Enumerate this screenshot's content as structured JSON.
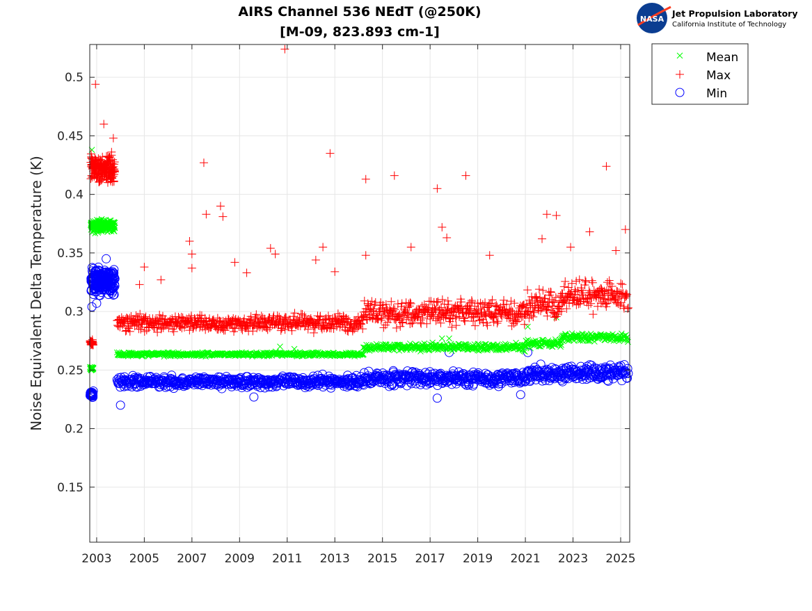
{
  "chart_data": {
    "type": "scatter",
    "title": "AIRS Channel 536 NEdT (@250K)",
    "subtitle": "[M-09, 823.893 cm-1]",
    "xlabel": "",
    "ylabel": "Noise Equivalent Delta Temperature (K)",
    "xlim": [
      2002.71,
      2025.38
    ],
    "ylim": [
      0.103,
      0.528
    ],
    "xticks": [
      2003,
      2005,
      2007,
      2009,
      2011,
      2013,
      2015,
      2017,
      2019,
      2021,
      2023,
      2025
    ],
    "xtick_labels": [
      "2003",
      "2005",
      "2007",
      "2009",
      "2011",
      "2013",
      "2015",
      "2017",
      "2019",
      "2021",
      "2023",
      "2025"
    ],
    "yticks": [
      0.15,
      0.2,
      0.25,
      0.3,
      0.35,
      0.4,
      0.45,
      0.5
    ],
    "ytick_labels": [
      "0.15",
      "0.2",
      "0.25",
      "0.3",
      "0.35",
      "0.4",
      "0.45",
      "0.5"
    ],
    "grid": true,
    "legend_position": "outside-top-right",
    "series": [
      {
        "name": "Mean",
        "marker": "x",
        "color": "#00ff00",
        "clusters": [
          {
            "x": [
              2002.72,
              2002.85
            ],
            "y": [
              0.249,
              0.253
            ]
          },
          {
            "x": [
              2002.75,
              2003.75
            ],
            "y": [
              0.365,
              0.381
            ]
          },
          {
            "x": [
              2003.85,
              2014.2
            ],
            "y": [
              0.261,
              0.266
            ]
          },
          {
            "x": [
              2014.2,
              2021.0
            ],
            "y": [
              0.265,
              0.274
            ]
          },
          {
            "x": [
              2021.0,
              2022.5
            ],
            "y": [
              0.268,
              0.277
            ]
          },
          {
            "x": [
              2022.5,
              2025.3
            ],
            "y": [
              0.273,
              0.283
            ]
          }
        ],
        "points": [
          [
            2002.8,
            0.438
          ],
          [
            2010.7,
            0.27
          ],
          [
            2017.5,
            0.277
          ],
          [
            2017.8,
            0.277
          ],
          [
            2021.1,
            0.287
          ],
          [
            2022.3,
            0.295
          ],
          [
            2011.3,
            0.268
          ]
        ]
      },
      {
        "name": "Max",
        "marker": "+",
        "color": "#ff0000",
        "clusters": [
          {
            "x": [
              2002.72,
              2002.85
            ],
            "y": [
              0.27,
              0.277
            ]
          },
          {
            "x": [
              2002.75,
              2003.75
            ],
            "y": [
              0.405,
              0.44
            ]
          },
          {
            "x": [
              2003.85,
              2014.2
            ],
            "y": [
              0.28,
              0.3
            ]
          },
          {
            "x": [
              2014.2,
              2021.0
            ],
            "y": [
              0.284,
              0.314
            ]
          },
          {
            "x": [
              2021.0,
              2022.5
            ],
            "y": [
              0.288,
              0.322
            ]
          },
          {
            "x": [
              2022.5,
              2025.3
            ],
            "y": [
              0.296,
              0.33
            ]
          }
        ],
        "points": [
          [
            2002.95,
            0.494
          ],
          [
            2003.3,
            0.46
          ],
          [
            2003.7,
            0.448
          ],
          [
            2004.8,
            0.323
          ],
          [
            2005.0,
            0.338
          ],
          [
            2005.7,
            0.327
          ],
          [
            2006.9,
            0.36
          ],
          [
            2007.0,
            0.349
          ],
          [
            2007.0,
            0.337
          ],
          [
            2007.5,
            0.427
          ],
          [
            2007.6,
            0.383
          ],
          [
            2008.2,
            0.39
          ],
          [
            2008.3,
            0.381
          ],
          [
            2008.8,
            0.342
          ],
          [
            2009.3,
            0.333
          ],
          [
            2010.3,
            0.354
          ],
          [
            2010.5,
            0.349
          ],
          [
            2010.9,
            0.524
          ],
          [
            2012.2,
            0.344
          ],
          [
            2012.5,
            0.355
          ],
          [
            2012.8,
            0.435
          ],
          [
            2013.0,
            0.334
          ],
          [
            2014.3,
            0.413
          ],
          [
            2014.3,
            0.348
          ],
          [
            2015.5,
            0.416
          ],
          [
            2016.2,
            0.355
          ],
          [
            2017.3,
            0.405
          ],
          [
            2017.5,
            0.372
          ],
          [
            2017.7,
            0.363
          ],
          [
            2018.5,
            0.416
          ],
          [
            2019.5,
            0.348
          ],
          [
            2021.7,
            0.362
          ],
          [
            2021.9,
            0.383
          ],
          [
            2022.3,
            0.382
          ],
          [
            2022.9,
            0.355
          ],
          [
            2023.7,
            0.368
          ],
          [
            2024.4,
            0.424
          ],
          [
            2024.8,
            0.352
          ],
          [
            2025.2,
            0.37
          ]
        ]
      },
      {
        "name": "Min",
        "marker": "o",
        "color": "#0000ff",
        "clusters": [
          {
            "x": [
              2002.72,
              2002.85
            ],
            "y": [
              0.225,
              0.233
            ]
          },
          {
            "x": [
              2002.75,
              2003.75
            ],
            "y": [
              0.312,
              0.34
            ]
          },
          {
            "x": [
              2003.85,
              2014.2
            ],
            "y": [
              0.233,
              0.247
            ]
          },
          {
            "x": [
              2014.2,
              2021.0
            ],
            "y": [
              0.234,
              0.252
            ]
          },
          {
            "x": [
              2021.0,
              2022.5
            ],
            "y": [
              0.237,
              0.256
            ]
          },
          {
            "x": [
              2022.5,
              2025.3
            ],
            "y": [
              0.238,
              0.257
            ]
          }
        ],
        "points": [
          [
            2004.0,
            0.22
          ],
          [
            2009.6,
            0.227
          ],
          [
            2017.3,
            0.226
          ],
          [
            2017.8,
            0.265
          ],
          [
            2020.8,
            0.229
          ],
          [
            2021.1,
            0.265
          ],
          [
            2002.8,
            0.304
          ],
          [
            2003.0,
            0.307
          ],
          [
            2003.4,
            0.345
          ]
        ]
      }
    ]
  },
  "logo": {
    "line1": "Jet Propulsion Laboratory",
    "line2": "California Institute of Technology",
    "badge": "NASA"
  }
}
